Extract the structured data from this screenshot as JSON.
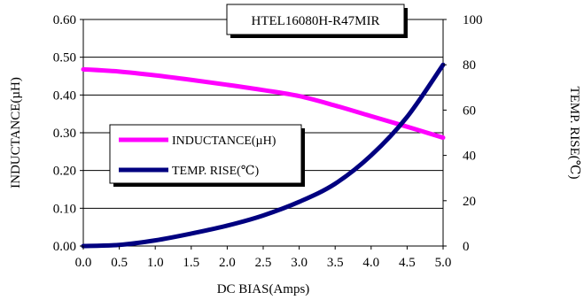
{
  "chart_data": {
    "type": "line",
    "title": "HTEL16080H-R47MIR",
    "xlabel": "DC BIAS(Amps)",
    "ylabel": "INDUCTANCE(µH)",
    "y2label": "TEMP. RISE(℃)",
    "xlim": [
      0,
      5
    ],
    "ylim": [
      0,
      0.6
    ],
    "y2lim": [
      0,
      100
    ],
    "x_ticks": [
      "0.0",
      "0.5",
      "1.0",
      "1.5",
      "2.0",
      "2.5",
      "3.0",
      "3.5",
      "4.0",
      "4.5",
      "5.0"
    ],
    "y_ticks": [
      "0.00",
      "0.10",
      "0.20",
      "0.30",
      "0.40",
      "0.50",
      "0.60"
    ],
    "y2_ticks": [
      "0",
      "20",
      "40",
      "60",
      "80",
      "100"
    ],
    "grid": "horizontal",
    "legend_position": "center-left",
    "series": [
      {
        "name": "INDUCTANCE(µH)",
        "axis": "left",
        "color": "#ff00ff",
        "x": [
          0,
          0.5,
          1.0,
          1.5,
          2.0,
          2.5,
          3.0,
          3.5,
          4.0,
          4.5,
          5.0
        ],
        "y": [
          0.468,
          0.462,
          0.452,
          0.44,
          0.427,
          0.413,
          0.397,
          0.372,
          0.344,
          0.316,
          0.287
        ]
      },
      {
        "name": "TEMP. RISE(℃)",
        "axis": "right",
        "color": "#000080",
        "x": [
          0,
          0.5,
          1.0,
          1.5,
          2.0,
          2.5,
          3.0,
          3.5,
          4.0,
          4.5,
          5.0
        ],
        "y": [
          0,
          0.5,
          2.5,
          5.5,
          9,
          13.5,
          19.5,
          27.5,
          40,
          57,
          80
        ]
      }
    ]
  }
}
